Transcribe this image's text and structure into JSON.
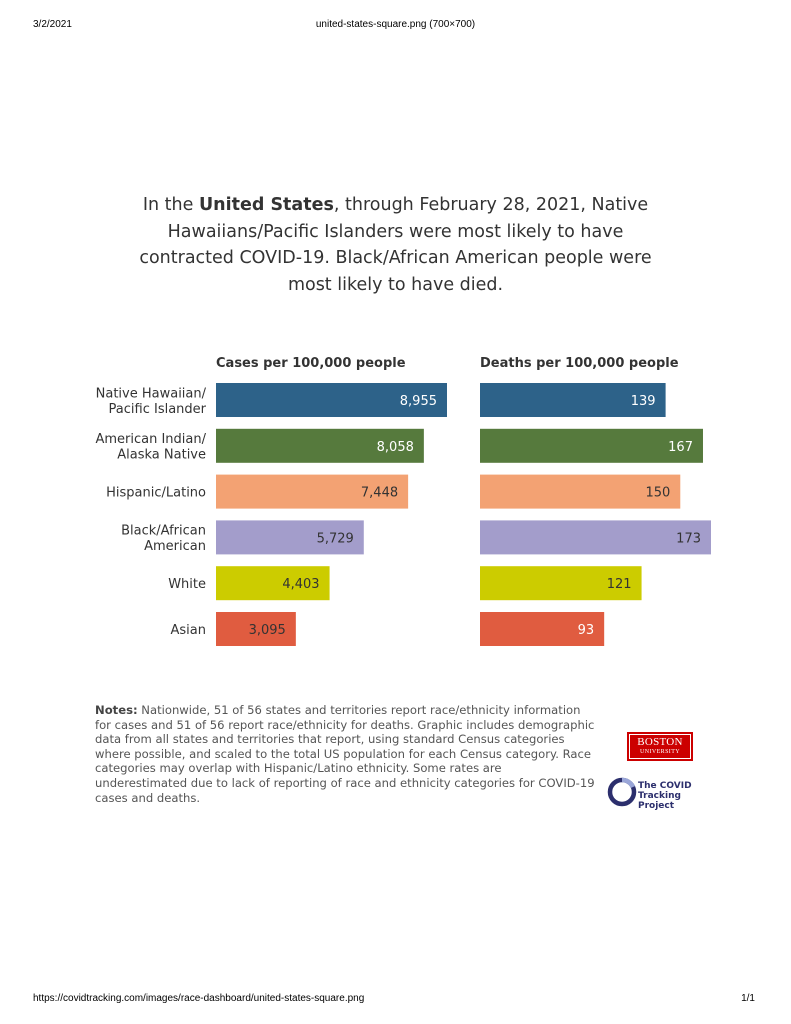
{
  "print_header": {
    "date": "3/2/2021",
    "file_title": "united-states-square.png (700×700)"
  },
  "print_footer": {
    "url": "https://covidtracking.com/images/race-dashboard/united-states-square.png",
    "page": "1/1"
  },
  "headline": {
    "prefix": "In the ",
    "bold": "United States",
    "rest": ", through February 28, 2021, Native Hawaiians/Pacific Islanders were most likely to have contracted COVID-19. Black/African American people were most likely to have died."
  },
  "notes": {
    "label": "Notes:",
    "text": " Nationwide, 51 of 56 states and territories report race/ethnicity information for cases and 51 of 56 report race/ethnicity for deaths. Graphic includes demographic data from all states and territories that report, using standard Census categories where possible, and scaled to the total US population for each Census category. Race categories may overlap with Hispanic/Latino ethnicity. Some rates are underestimated due to lack of reporting of race and ethnicity categories for COVID-19 cases and deaths."
  },
  "logos": {
    "bu_line1": "BOSTON",
    "bu_line2": "UNIVERSITY",
    "ctp_line1": "The COVID",
    "ctp_line2": "Tracking Project"
  },
  "chart_data": [
    {
      "type": "bar",
      "orientation": "horizontal",
      "title": "Cases per 100,000 people",
      "categories": [
        [
          "Native Hawaiian/",
          "Pacific Islander"
        ],
        [
          "American Indian/",
          "Alaska Native"
        ],
        [
          "Hispanic/Latino"
        ],
        [
          "Black/African",
          "American"
        ],
        [
          "White"
        ],
        [
          "Asian"
        ]
      ],
      "values": [
        8955,
        8058,
        7448,
        5729,
        4403,
        3095
      ],
      "value_labels": [
        "8,955",
        "8,058",
        "7,448",
        "5,729",
        "4,403",
        "3,095"
      ],
      "colors": [
        "#2d6289",
        "#567a3d",
        "#f3a273",
        "#a39dcb",
        "#cccc00",
        "#e05c40"
      ],
      "label_colors": [
        "#ffffff",
        "#ffffff",
        "#333333",
        "#333333",
        "#333333",
        "#333333"
      ],
      "xlim": [
        0,
        8955
      ]
    },
    {
      "type": "bar",
      "orientation": "horizontal",
      "title": "Deaths per 100,000 people",
      "values": [
        139,
        167,
        150,
        173,
        121,
        93
      ],
      "value_labels": [
        "139",
        "167",
        "150",
        "173",
        "121",
        "93"
      ],
      "colors": [
        "#2d6289",
        "#567a3d",
        "#f3a273",
        "#a39dcb",
        "#cccc00",
        "#e05c40"
      ],
      "label_colors": [
        "#ffffff",
        "#ffffff",
        "#333333",
        "#333333",
        "#333333",
        "#ffffff"
      ],
      "xlim": [
        0,
        173
      ]
    }
  ]
}
